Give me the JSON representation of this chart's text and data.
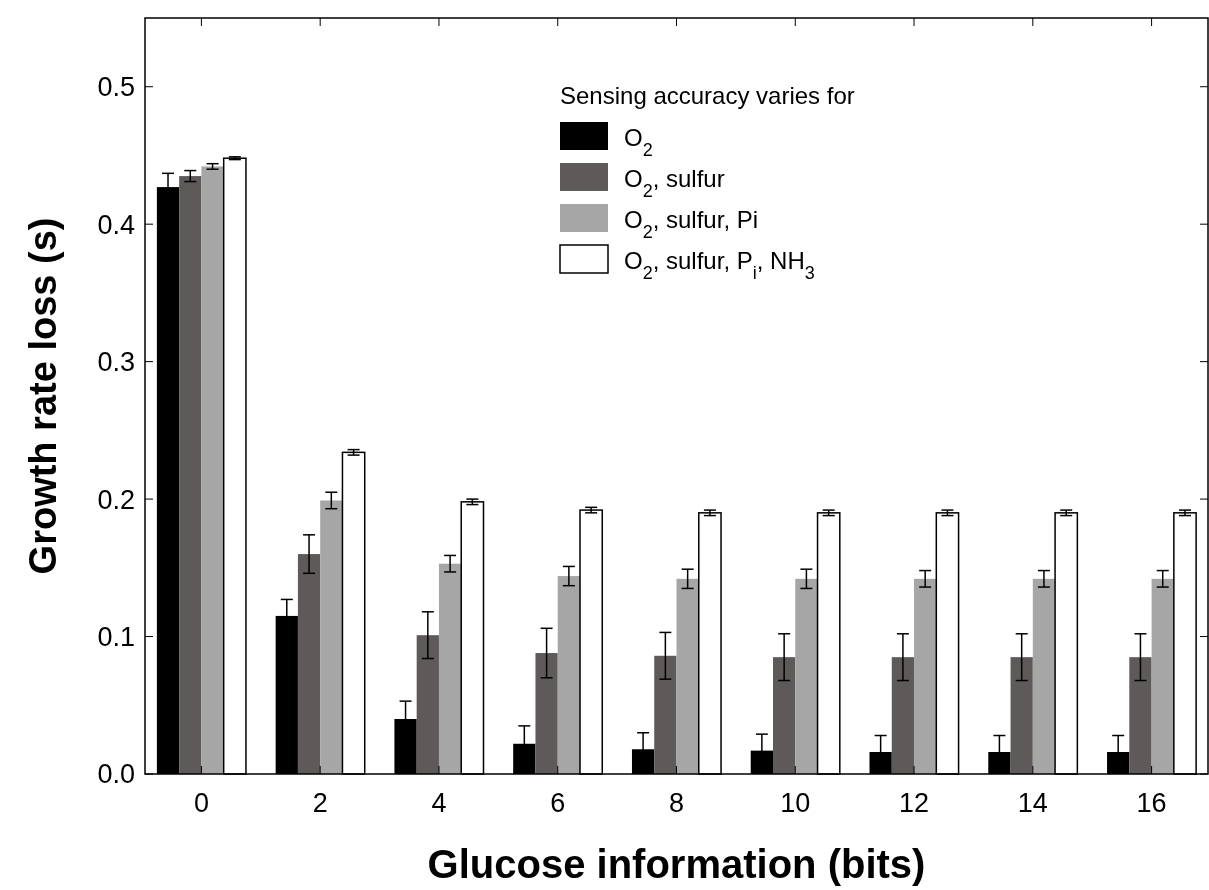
{
  "chart_data": {
    "type": "bar",
    "xlabel": "Glucose information (bits)",
    "ylabel": "Growth rate loss (s)",
    "legend_title": "Sensing accuracy varies for",
    "legend": "top right",
    "categories": [
      "0",
      "2",
      "4",
      "6",
      "8",
      "10",
      "12",
      "14",
      "16"
    ],
    "ylim": [
      0,
      0.55
    ],
    "yticks": [
      {
        "value": 0,
        "label": "0.0"
      },
      0.1,
      0.2,
      0.3,
      0.4,
      0.5
    ],
    "series": [
      {
        "name": "O$_{2}$",
        "color": "#000000",
        "values": [
          0.427,
          0.115,
          0.04,
          0.022,
          0.018,
          0.017,
          0.016,
          0.016,
          0.016
        ],
        "errors": [
          0.01,
          0.012,
          0.013,
          0.013,
          0.012,
          0.012,
          0.012,
          0.012,
          0.012
        ]
      },
      {
        "name": "O$_{2}$, sulfur",
        "color": "#5e5a59",
        "values": [
          0.435,
          0.16,
          0.101,
          0.088,
          0.086,
          0.085,
          0.085,
          0.085,
          0.085
        ],
        "errors": [
          0.004,
          0.014,
          0.017,
          0.018,
          0.017,
          0.017,
          0.017,
          0.017,
          0.017
        ]
      },
      {
        "name": "O$_{2}$, sulfur, Pi",
        "color": "#a6a6a6",
        "values": [
          0.442,
          0.199,
          0.153,
          0.144,
          0.142,
          0.142,
          0.142,
          0.142,
          0.142
        ],
        "errors": [
          0.002,
          0.006,
          0.006,
          0.007,
          0.007,
          0.007,
          0.006,
          0.006,
          0.006
        ]
      },
      {
        "name": "O$_{2}$, sulfur, P$_{i}$, NH$_{3}$",
        "color": "#ffffff",
        "values": [
          0.448,
          0.234,
          0.198,
          0.192,
          0.19,
          0.19,
          0.19,
          0.19,
          0.19
        ],
        "errors": [
          0.001,
          0.002,
          0.002,
          0.002,
          0.002,
          0.002,
          0.002,
          0.002,
          0.002
        ]
      }
    ]
  }
}
